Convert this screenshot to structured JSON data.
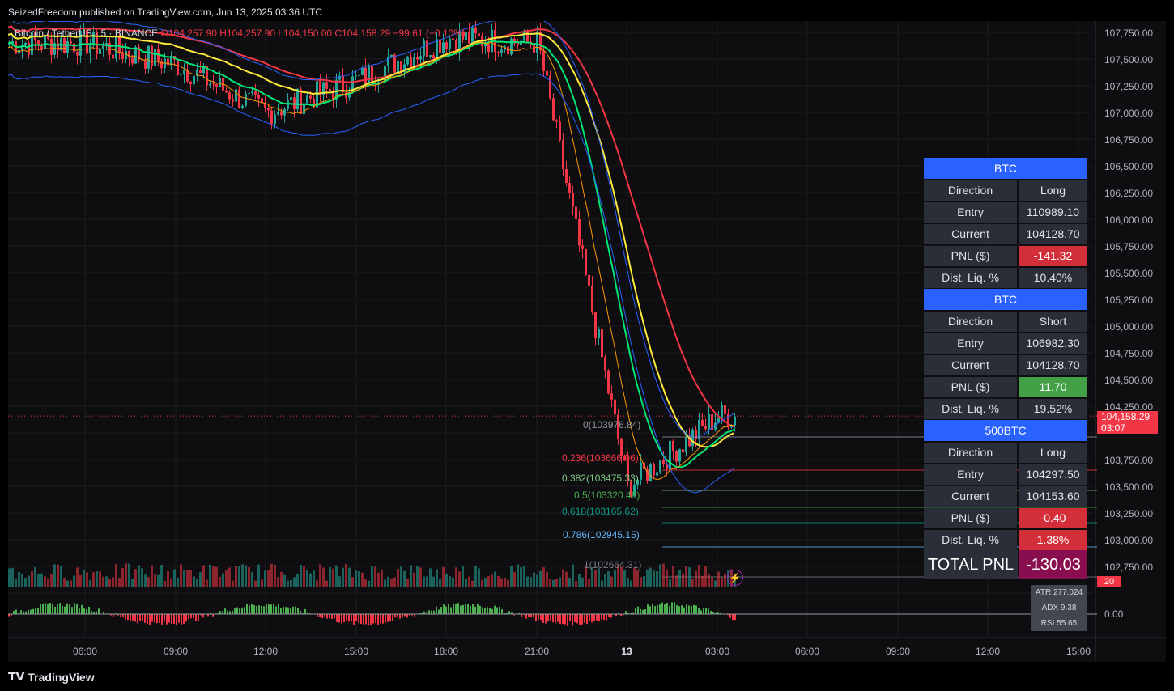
{
  "header": {
    "publish_line": "SeizedFreedom published on TradingView.com, Jun 13, 2025 03:36 UTC"
  },
  "legend": {
    "symbol": "Bitcoin / TetherUS · 5 · BINANCE",
    "o": "O104,257.90",
    "h": "H104,257.90",
    "l": "L104,150.00",
    "c": "C104,158.29",
    "chg": "−99.61 (−0.10%)"
  },
  "price_axis": [
    "107,750.00",
    "107,500.00",
    "107,250.00",
    "107,000.00",
    "106,750.00",
    "106,500.00",
    "106,250.00",
    "106,000.00",
    "105,750.00",
    "105,500.00",
    "105,250.00",
    "105,000.00",
    "104,750.00",
    "104,500.00",
    "104,250.00",
    "103,750.00",
    "103,500.00",
    "103,250.00",
    "103,000.00",
    "102,750.00"
  ],
  "current_price": {
    "price": "104,158.29",
    "countdown": "03:07"
  },
  "volume_tag": "20",
  "time_axis": [
    {
      "label": "06:00",
      "bold": false
    },
    {
      "label": "09:00",
      "bold": false
    },
    {
      "label": "12:00",
      "bold": false
    },
    {
      "label": "15:00",
      "bold": false
    },
    {
      "label": "18:00",
      "bold": false
    },
    {
      "label": "21:00",
      "bold": false
    },
    {
      "label": "13",
      "bold": true
    },
    {
      "label": "03:00",
      "bold": false
    },
    {
      "label": "06:00",
      "bold": false
    },
    {
      "label": "09:00",
      "bold": false
    },
    {
      "label": "12:00",
      "bold": false
    },
    {
      "label": "15:00",
      "bold": false
    }
  ],
  "fib_levels": [
    {
      "label": "0(103976.84)",
      "color": "#9598a1"
    },
    {
      "label": "0.236(103666.96)",
      "color": "#f23645"
    },
    {
      "label": "0.382(103475.33)",
      "color": "#81c784"
    },
    {
      "label": "0.5(103320.48)",
      "color": "#4caf50"
    },
    {
      "label": "0.618(103165.62)",
      "color": "#089981"
    },
    {
      "label": "0.786(102945.15)",
      "color": "#64b5f6"
    },
    {
      "label": "1(102664.31)",
      "color": "#787b86"
    }
  ],
  "indicators": {
    "atr": "ATR 277.024",
    "adx": "ADX 9.38",
    "rsi": "RSI 55.65",
    "zero": "0.00"
  },
  "positions": [
    {
      "title": "BTC",
      "rows": [
        {
          "k": "Direction",
          "v": "Long",
          "tone": ""
        },
        {
          "k": "Entry",
          "v": "110989.10",
          "tone": ""
        },
        {
          "k": "Current",
          "v": "104128.70",
          "tone": ""
        },
        {
          "k": "PNL ($)",
          "v": "-141.32",
          "tone": "neg"
        },
        {
          "k": "Dist. Liq. %",
          "v": "10.40%",
          "tone": ""
        }
      ]
    },
    {
      "title": "BTC",
      "rows": [
        {
          "k": "Direction",
          "v": "Short",
          "tone": ""
        },
        {
          "k": "Entry",
          "v": "106982.30",
          "tone": ""
        },
        {
          "k": "Current",
          "v": "104128.70",
          "tone": ""
        },
        {
          "k": "PNL ($)",
          "v": "11.70",
          "tone": "pos"
        },
        {
          "k": "Dist. Liq. %",
          "v": "19.52%",
          "tone": ""
        }
      ]
    },
    {
      "title": "500BTC",
      "rows": [
        {
          "k": "Direction",
          "v": "Long",
          "tone": ""
        },
        {
          "k": "Entry",
          "v": "104297.50",
          "tone": ""
        },
        {
          "k": "Current",
          "v": "104153.60",
          "tone": ""
        },
        {
          "k": "PNL ($)",
          "v": "-0.40",
          "tone": "neg"
        },
        {
          "k": "Dist. Liq. %",
          "v": "1.38%",
          "tone": "neg"
        }
      ]
    }
  ],
  "total_pnl": {
    "label": "TOTAL PNL",
    "value": "-130.03"
  },
  "footer": {
    "brand": "TradingView"
  },
  "chart_data": {
    "type": "line",
    "title": "Bitcoin / TetherUS · 5 · BINANCE",
    "x": [
      "06:00",
      "09:00",
      "12:00",
      "15:00",
      "18:00",
      "21:00",
      "13",
      "03:00"
    ],
    "ylim": [
      102600,
      107900
    ],
    "series": [
      {
        "values": [
          107650,
          107450,
          107000,
          107300,
          107700,
          107650,
          103500,
          104158
        ]
      }
    ]
  }
}
